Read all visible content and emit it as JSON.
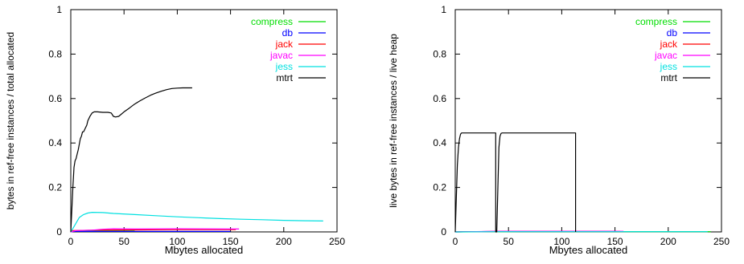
{
  "chart_data": [
    {
      "type": "line",
      "title": "",
      "xlabel": "Mbytes allocated",
      "ylabel": "bytes in ref-free instances / total allocated",
      "xlim": [
        0,
        250
      ],
      "ylim": [
        0,
        1
      ],
      "xticks": [
        "0",
        "50",
        "100",
        "150",
        "200",
        "250"
      ],
      "yticks": [
        "0",
        "0.2",
        "0.4",
        "0.6",
        "0.8",
        "1"
      ],
      "grid": false,
      "legend_position": "top-right",
      "series": [
        {
          "name": "compress",
          "color": "#00dd00",
          "points": [
            [
              0,
              0
            ],
            [
              2,
              0.003
            ],
            [
              10,
              0.004
            ],
            [
              40,
              0.004
            ],
            [
              60,
              0.004
            ]
          ]
        },
        {
          "name": "db",
          "color": "#0000ff",
          "points": [
            [
              0,
              0
            ],
            [
              3,
              0.002
            ],
            [
              20,
              0.002
            ],
            [
              60,
              0.002
            ],
            [
              100,
              0.002
            ],
            [
              150,
              0.002
            ]
          ]
        },
        {
          "name": "jack",
          "color": "#ff0000",
          "points": [
            [
              0,
              0
            ],
            [
              2,
              0.006
            ],
            [
              20,
              0.008
            ],
            [
              60,
              0.009
            ],
            [
              100,
              0.01
            ],
            [
              155,
              0.01
            ]
          ]
        },
        {
          "name": "javac",
          "color": "#ff00ff",
          "points": [
            [
              0,
              0
            ],
            [
              5,
              0.006
            ],
            [
              20,
              0.008
            ],
            [
              30,
              0.012
            ],
            [
              40,
              0.014
            ],
            [
              60,
              0.013
            ],
            [
              100,
              0.014
            ],
            [
              150,
              0.013
            ],
            [
              158,
              0.013
            ]
          ]
        },
        {
          "name": "jess",
          "color": "#00e0e0",
          "points": [
            [
              0,
              0
            ],
            [
              2,
              0.015
            ],
            [
              5,
              0.04
            ],
            [
              8,
              0.065
            ],
            [
              12,
              0.078
            ],
            [
              16,
              0.085
            ],
            [
              20,
              0.088
            ],
            [
              30,
              0.087
            ],
            [
              40,
              0.083
            ],
            [
              60,
              0.078
            ],
            [
              80,
              0.073
            ],
            [
              100,
              0.068
            ],
            [
              120,
              0.064
            ],
            [
              140,
              0.06
            ],
            [
              160,
              0.057
            ],
            [
              180,
              0.055
            ],
            [
              200,
              0.052
            ],
            [
              220,
              0.05
            ],
            [
              237,
              0.049
            ]
          ]
        },
        {
          "name": "mtrt",
          "color": "#000000",
          "points": [
            [
              0,
              0
            ],
            [
              1,
              0.1
            ],
            [
              2,
              0.2
            ],
            [
              3,
              0.29
            ],
            [
              4,
              0.32
            ],
            [
              5,
              0.33
            ],
            [
              6,
              0.35
            ],
            [
              7,
              0.37
            ],
            [
              8,
              0.395
            ],
            [
              9,
              0.42
            ],
            [
              10,
              0.43
            ],
            [
              11,
              0.45
            ],
            [
              12,
              0.45
            ],
            [
              13,
              0.46
            ],
            [
              14,
              0.47
            ],
            [
              15,
              0.48
            ],
            [
              16,
              0.5
            ],
            [
              18,
              0.52
            ],
            [
              20,
              0.535
            ],
            [
              22,
              0.54
            ],
            [
              25,
              0.54
            ],
            [
              30,
              0.538
            ],
            [
              35,
              0.538
            ],
            [
              38,
              0.535
            ],
            [
              40,
              0.52
            ],
            [
              42,
              0.517
            ],
            [
              45,
              0.52
            ],
            [
              50,
              0.54
            ],
            [
              55,
              0.557
            ],
            [
              60,
              0.575
            ],
            [
              65,
              0.59
            ],
            [
              70,
              0.603
            ],
            [
              75,
              0.615
            ],
            [
              80,
              0.625
            ],
            [
              85,
              0.633
            ],
            [
              90,
              0.64
            ],
            [
              95,
              0.645
            ],
            [
              100,
              0.647
            ],
            [
              105,
              0.648
            ],
            [
              110,
              0.648
            ],
            [
              114,
              0.648
            ]
          ]
        }
      ]
    },
    {
      "type": "line",
      "title": "",
      "xlabel": "Mbytes allocated",
      "ylabel": "live bytes in ref-free instances / live heap",
      "xlim": [
        0,
        250
      ],
      "ylim": [
        0,
        1
      ],
      "xticks": [
        "0",
        "50",
        "100",
        "150",
        "200",
        "250"
      ],
      "yticks": [
        "0",
        "0.2",
        "0.4",
        "0.6",
        "0.8",
        "1"
      ],
      "grid": false,
      "legend_position": "top-right",
      "series": [
        {
          "name": "compress",
          "color": "#00dd00",
          "points": [
            [
              0,
              0
            ],
            [
              60,
              0.001
            ],
            [
              100,
              0.001
            ],
            [
              150,
              0.001
            ],
            [
              200,
              0.001
            ],
            [
              240,
              0.001
            ]
          ]
        },
        {
          "name": "db",
          "color": "#0000ff",
          "points": [
            [
              0,
              0
            ],
            [
              40,
              0.002
            ],
            [
              80,
              0.002
            ],
            [
              120,
              0.002
            ],
            [
              150,
              0.002
            ]
          ]
        },
        {
          "name": "jack",
          "color": "#ff0000",
          "points": [
            [
              0,
              0
            ],
            [
              40,
              0.002
            ],
            [
              100,
              0.002
            ],
            [
              155,
              0.002
            ]
          ]
        },
        {
          "name": "javac",
          "color": "#ff00ff",
          "points": [
            [
              0,
              0
            ],
            [
              40,
              0.003
            ],
            [
              100,
              0.003
            ],
            [
              158,
              0.003
            ]
          ]
        },
        {
          "name": "jess",
          "color": "#00e0e0",
          "points": [
            [
              0,
              0
            ],
            [
              40,
              0.001
            ],
            [
              120,
              0.001
            ],
            [
              200,
              0.001
            ],
            [
              237,
              0.001
            ]
          ]
        },
        {
          "name": "mtrt",
          "color": "#000000",
          "points": [
            [
              0,
              0
            ],
            [
              1,
              0.15
            ],
            [
              2,
              0.3
            ],
            [
              3,
              0.38
            ],
            [
              4,
              0.42
            ],
            [
              5,
              0.44
            ],
            [
              6,
              0.445
            ],
            [
              38,
              0.445
            ],
            [
              38,
              0
            ],
            [
              39,
              0
            ],
            [
              40,
              0.2
            ],
            [
              41,
              0.38
            ],
            [
              42,
              0.43
            ],
            [
              43,
              0.443
            ],
            [
              44,
              0.445
            ],
            [
              113,
              0.445
            ],
            [
              113,
              0
            ]
          ]
        }
      ]
    }
  ]
}
